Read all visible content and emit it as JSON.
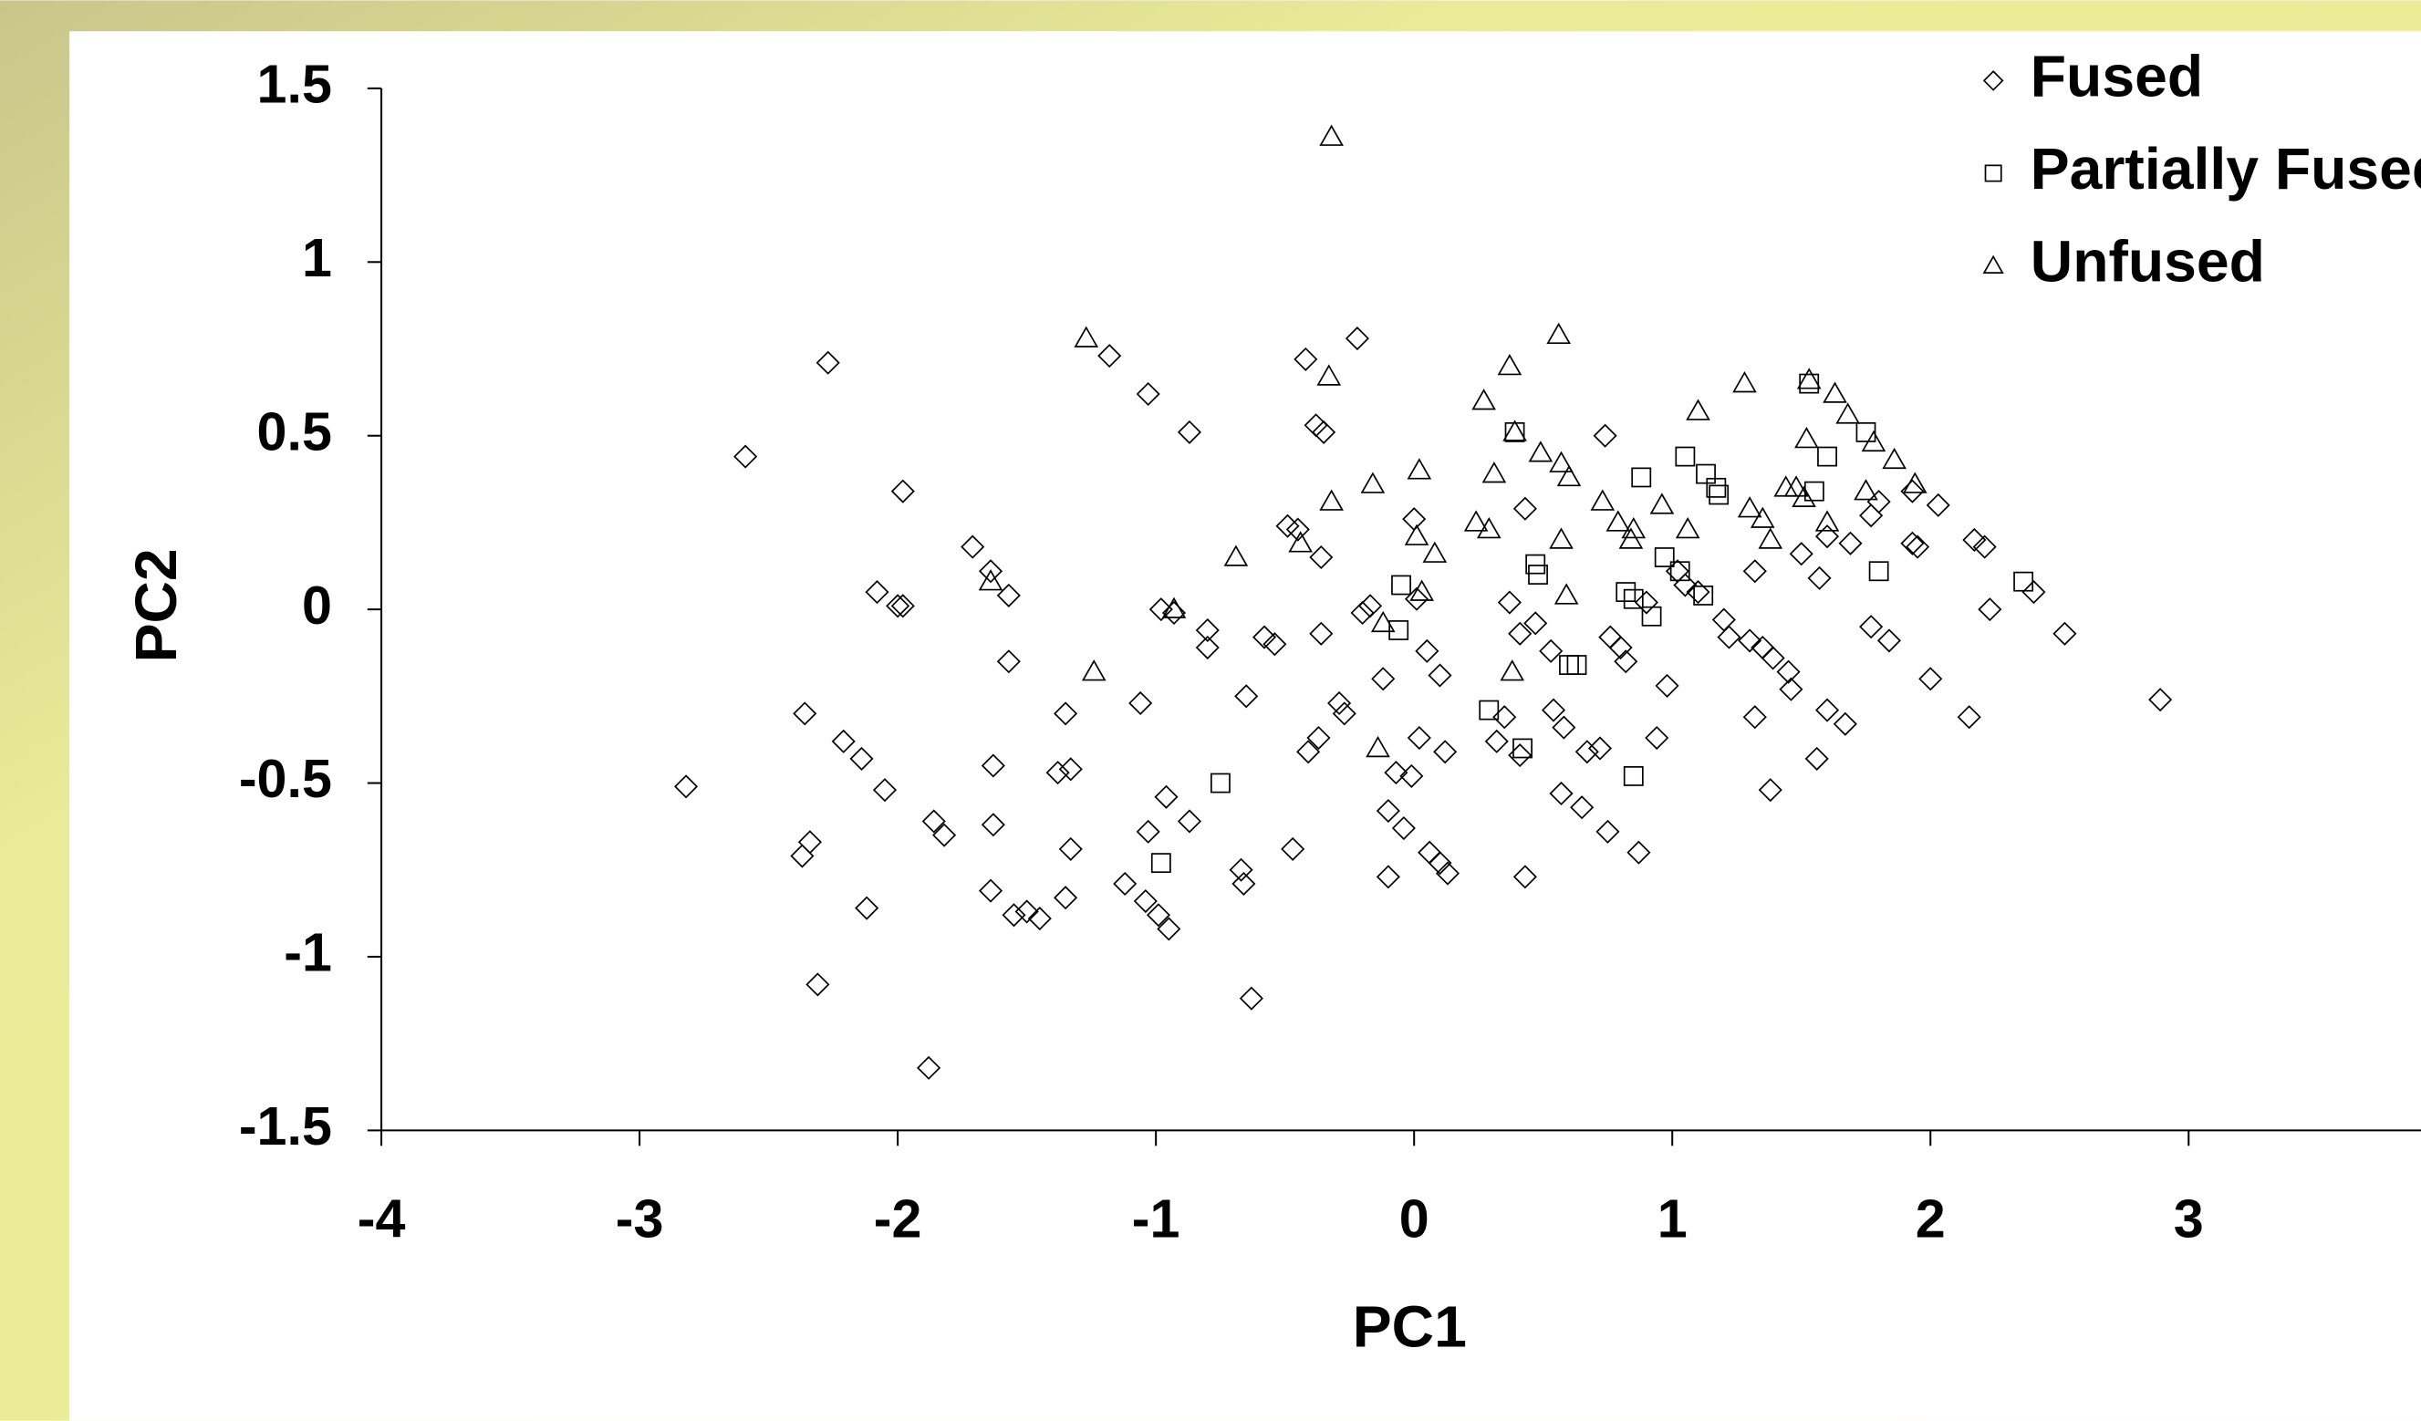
{
  "chart_data": {
    "type": "scatter",
    "x_label": "PC1",
    "y_label": "PC2",
    "xlim": [
      -4,
      3.9
    ],
    "xticks": [
      -4,
      -3,
      -2,
      -1,
      0,
      1,
      2,
      3
    ],
    "ylim": [
      -1.5,
      1.5
    ],
    "yticks": [
      -1.5,
      -1,
      -0.5,
      0,
      0.5,
      1,
      1.5
    ],
    "legend": "top-right",
    "grid": false,
    "series": [
      {
        "name": "Fused",
        "marker": "diamond",
        "color": "#000000",
        "x": [
          -2.82,
          -2.59,
          -2.27,
          -1.98,
          -2.08,
          -2.0,
          -1.98,
          -2.36,
          -2.21,
          -2.14,
          -2.05,
          -2.37,
          -2.34,
          -2.12,
          -2.31,
          -1.88,
          -1.86,
          -1.82,
          -1.71,
          -1.64,
          -1.57,
          -1.57,
          -1.63,
          -1.63,
          -1.64,
          -1.55,
          -1.5,
          -1.45,
          -1.35,
          -1.38,
          -1.33,
          -1.33,
          -1.35,
          -1.18,
          -1.06,
          -1.03,
          -0.98,
          -0.93,
          -0.96,
          -1.03,
          -1.12,
          -1.04,
          -0.99,
          -0.95,
          -0.87,
          -0.8,
          -0.8,
          -0.87,
          -0.65,
          -0.67,
          -0.66,
          -0.63,
          -0.58,
          -0.54,
          -0.49,
          -0.45,
          -0.47,
          -0.42,
          -0.38,
          -0.35,
          -0.36,
          -0.36,
          -0.29,
          -0.27,
          -0.37,
          -0.41,
          -0.22,
          -0.17,
          -0.2,
          -0.12,
          -0.07,
          -0.1,
          -0.1,
          -0.04,
          0.0,
          0.01,
          0.05,
          0.1,
          0.02,
          -0.01,
          0.12,
          0.06,
          0.1,
          0.13,
          0.37,
          0.43,
          0.41,
          0.47,
          0.35,
          0.32,
          0.41,
          0.43,
          0.53,
          0.54,
          0.58,
          0.57,
          0.65,
          0.67,
          0.72,
          0.74,
          0.76,
          0.8,
          0.82,
          0.75,
          0.87,
          0.9,
          0.94,
          0.98,
          1.02,
          1.05,
          1.1,
          1.2,
          1.22,
          1.3,
          1.32,
          1.32,
          1.35,
          1.39,
          1.38,
          1.45,
          1.46,
          1.5,
          1.57,
          1.56,
          1.6,
          1.67,
          1.6,
          1.69,
          1.77,
          1.84,
          1.77,
          1.8,
          1.93,
          1.95,
          2.0,
          1.93,
          2.03,
          2.17,
          2.21,
          2.23,
          2.15,
          2.4,
          2.52,
          2.89
        ],
        "values": [
          -0.51,
          0.44,
          0.71,
          0.34,
          0.05,
          0.01,
          0.01,
          -0.3,
          -0.38,
          -0.43,
          -0.52,
          -0.71,
          -0.67,
          -0.86,
          -1.08,
          -1.32,
          -0.61,
          -0.65,
          0.18,
          0.11,
          0.04,
          -0.15,
          -0.45,
          -0.62,
          -0.81,
          -0.88,
          -0.87,
          -0.89,
          -0.3,
          -0.47,
          -0.46,
          -0.69,
          -0.83,
          0.73,
          -0.27,
          0.62,
          0.0,
          -0.01,
          -0.54,
          -0.64,
          -0.79,
          -0.84,
          -0.88,
          -0.92,
          0.51,
          -0.06,
          -0.11,
          -0.61,
          -0.25,
          -0.75,
          -0.79,
          -1.12,
          -0.08,
          -0.1,
          0.24,
          0.23,
          -0.69,
          0.72,
          0.53,
          0.51,
          0.15,
          -0.07,
          -0.27,
          -0.3,
          -0.37,
          -0.41,
          0.78,
          0.01,
          -0.01,
          -0.2,
          -0.47,
          -0.58,
          -0.77,
          -0.63,
          0.26,
          0.03,
          -0.12,
          -0.19,
          -0.37,
          -0.48,
          -0.41,
          -0.7,
          -0.73,
          -0.76,
          0.02,
          0.29,
          -0.07,
          -0.04,
          -0.31,
          -0.38,
          -0.42,
          -0.77,
          -0.12,
          -0.29,
          -0.34,
          -0.53,
          -0.57,
          -0.41,
          -0.4,
          0.5,
          -0.08,
          -0.11,
          -0.15,
          -0.64,
          -0.7,
          0.02,
          -0.37,
          -0.22,
          0.11,
          0.07,
          0.05,
          -0.03,
          -0.08,
          -0.09,
          0.11,
          -0.31,
          -0.11,
          -0.14,
          -0.52,
          -0.18,
          -0.23,
          0.16,
          0.09,
          -0.43,
          -0.29,
          -0.33,
          0.21,
          0.19,
          -0.05,
          -0.09,
          0.27,
          0.31,
          0.19,
          0.18,
          -0.2,
          0.34,
          0.3,
          0.2,
          0.18,
          0.0,
          -0.31,
          0.05,
          -0.07,
          -0.26
        ]
      },
      {
        "name": "Partially Fused",
        "marker": "square",
        "color": "#000000",
        "x": [
          -0.75,
          -0.98,
          -0.05,
          -0.06,
          0.29,
          0.42,
          0.39,
          0.47,
          0.48,
          0.6,
          0.63,
          0.82,
          0.85,
          0.88,
          0.92,
          0.97,
          0.85,
          1.05,
          1.03,
          1.12,
          1.13,
          1.17,
          1.18,
          1.53,
          1.55,
          1.6,
          1.75,
          1.8,
          2.36
        ],
        "values": [
          -0.5,
          -0.73,
          0.07,
          -0.06,
          -0.29,
          -0.4,
          0.51,
          0.13,
          0.1,
          -0.16,
          -0.16,
          0.05,
          0.03,
          0.38,
          -0.02,
          0.15,
          -0.48,
          0.44,
          0.11,
          0.04,
          0.39,
          0.35,
          0.33,
          0.65,
          0.34,
          0.44,
          0.51,
          0.11,
          0.08
        ]
      },
      {
        "name": "Unfused",
        "marker": "triangle",
        "color": "#000000",
        "x": [
          -1.64,
          -1.27,
          -1.24,
          -0.93,
          -0.69,
          -0.32,
          -0.33,
          -0.32,
          -0.44,
          -0.16,
          -0.14,
          -0.12,
          0.02,
          0.01,
          0.03,
          0.08,
          0.24,
          0.27,
          0.29,
          0.31,
          0.37,
          0.39,
          0.38,
          0.49,
          0.56,
          0.57,
          0.57,
          0.59,
          0.6,
          0.73,
          0.79,
          0.84,
          0.85,
          0.96,
          1.06,
          1.1,
          1.28,
          1.3,
          1.35,
          1.38,
          1.48,
          1.51,
          1.52,
          1.53,
          1.6,
          1.63,
          1.68,
          1.75,
          1.78,
          1.86,
          1.94,
          1.44
        ],
        "values": [
          0.08,
          0.78,
          -0.18,
          0.0,
          0.15,
          1.36,
          0.67,
          0.31,
          0.19,
          0.36,
          -0.4,
          -0.04,
          0.4,
          0.21,
          0.05,
          0.16,
          0.25,
          0.6,
          0.23,
          0.39,
          0.7,
          0.51,
          -0.18,
          0.45,
          0.79,
          0.2,
          0.42,
          0.04,
          0.38,
          0.31,
          0.25,
          0.2,
          0.23,
          0.3,
          0.23,
          0.57,
          0.65,
          0.29,
          0.26,
          0.2,
          0.35,
          0.32,
          0.49,
          0.66,
          0.25,
          0.62,
          0.56,
          0.34,
          0.48,
          0.43,
          0.36,
          0.35
        ]
      }
    ]
  }
}
